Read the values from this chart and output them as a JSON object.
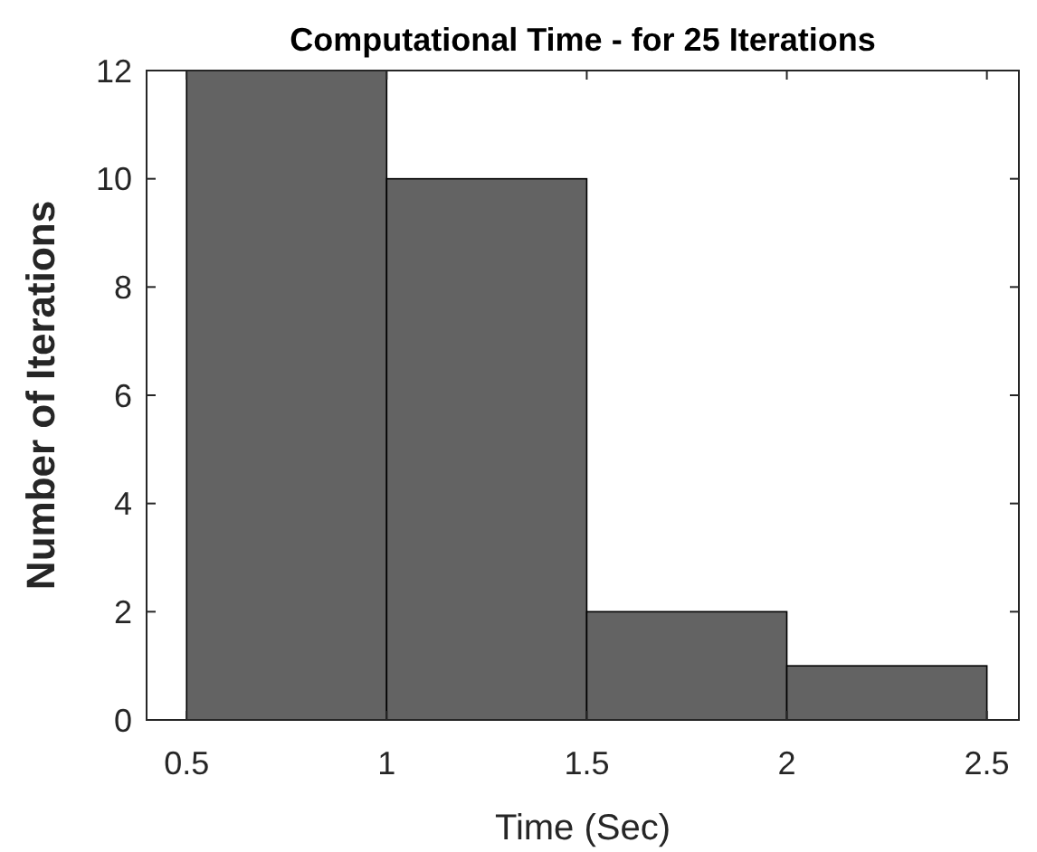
{
  "chart_data": {
    "type": "histogram",
    "title": "Computational Time - for 25 Iterations",
    "xlabel": "Time (Sec)",
    "ylabel": "Number of Iterations",
    "bins": [
      0.5,
      1,
      1.5,
      2,
      2.5
    ],
    "values": [
      12,
      10,
      2,
      1
    ],
    "color": "#636363",
    "xlim": [
      0.4,
      2.58
    ],
    "ylim": [
      0,
      12
    ],
    "xticks": [
      0.5,
      1,
      1.5,
      2,
      2.5
    ],
    "yticks": [
      0,
      2,
      4,
      6,
      8,
      10,
      12
    ],
    "grid": false
  }
}
